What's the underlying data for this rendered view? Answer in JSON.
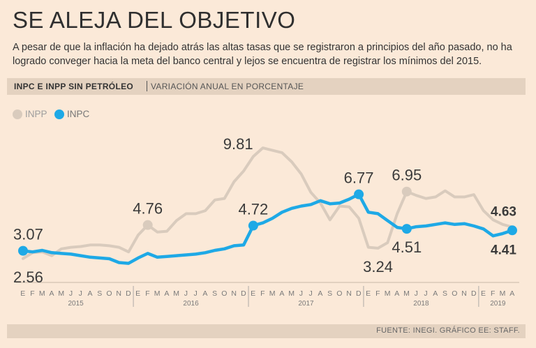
{
  "title": "SE ALEJA DEL OBJETIVO",
  "subtitle": "A pesar de que la inflación ha dejado atrás las altas tasas que se registraron a principios del año pasado, no ha logrado conveger hacia la meta del banco central y lejos se encuentra de registrar los mínimos del 2015.",
  "chart_header": {
    "title": "INPC E INPP SIN PETRÓLEO",
    "subtitle": "VARIACIÓN ANUAL EN PORCENTAJE"
  },
  "legend": [
    {
      "label": "INPP",
      "color": "#d9cbbd"
    },
    {
      "label": "INPC",
      "color": "#1ea9e6"
    }
  ],
  "source": "FUENTE: INEGI. GRÁFICO EE: STAFF.",
  "chart_data": {
    "type": "line",
    "x": [
      "2015-01",
      "2015-02",
      "2015-03",
      "2015-04",
      "2015-05",
      "2015-06",
      "2015-07",
      "2015-08",
      "2015-09",
      "2015-10",
      "2015-11",
      "2015-12",
      "2016-01",
      "2016-02",
      "2016-03",
      "2016-04",
      "2016-05",
      "2016-06",
      "2016-07",
      "2016-08",
      "2016-09",
      "2016-10",
      "2016-11",
      "2016-12",
      "2017-01",
      "2017-02",
      "2017-03",
      "2017-04",
      "2017-05",
      "2017-06",
      "2017-07",
      "2017-08",
      "2017-09",
      "2017-10",
      "2017-11",
      "2017-12",
      "2018-01",
      "2018-02",
      "2018-03",
      "2018-04",
      "2018-05",
      "2018-06",
      "2018-07",
      "2018-08",
      "2018-09",
      "2018-10",
      "2018-11",
      "2018-12",
      "2019-01",
      "2019-02",
      "2019-03",
      "2019-04"
    ],
    "month_labels": [
      "E",
      "F",
      "M",
      "A",
      "M",
      "J",
      "J",
      "A",
      "S",
      "O",
      "N",
      "D",
      "E",
      "F",
      "M",
      "A",
      "M",
      "J",
      "J",
      "A",
      "S",
      "O",
      "N",
      "D",
      "E",
      "F",
      "M",
      "A",
      "M",
      "J",
      "J",
      "A",
      "S",
      "O",
      "N",
      "D",
      "E",
      "F",
      "M",
      "A",
      "M",
      "J",
      "J",
      "A",
      "S",
      "O",
      "N",
      "D",
      "E",
      "F",
      "M",
      "A"
    ],
    "year_labels": [
      {
        "label": "2015",
        "start": 0,
        "end": 11
      },
      {
        "label": "2016",
        "start": 12,
        "end": 23
      },
      {
        "label": "2017",
        "start": 24,
        "end": 35
      },
      {
        "label": "2018",
        "start": 36,
        "end": 47
      },
      {
        "label": "2019",
        "start": 48,
        "end": 51
      }
    ],
    "series": [
      {
        "name": "INPP",
        "color": "#d9cbbd",
        "values": [
          2.56,
          2.95,
          3.0,
          2.75,
          3.2,
          3.3,
          3.35,
          3.45,
          3.45,
          3.4,
          3.3,
          3.0,
          4.1,
          4.76,
          4.3,
          4.35,
          5.05,
          5.5,
          5.5,
          5.7,
          6.4,
          6.5,
          7.6,
          8.3,
          9.25,
          9.81,
          9.65,
          9.5,
          8.9,
          8.1,
          6.9,
          6.2,
          5.1,
          6.0,
          5.95,
          5.2,
          3.3,
          3.24,
          3.6,
          5.5,
          6.95,
          6.7,
          6.5,
          6.6,
          7.0,
          6.6,
          6.6,
          6.75,
          5.7,
          5.1,
          4.8,
          4.63
        ]
      },
      {
        "name": "INPC",
        "color": "#1ea9e6",
        "values": [
          3.07,
          3.0,
          3.1,
          2.95,
          2.9,
          2.85,
          2.75,
          2.65,
          2.6,
          2.55,
          2.3,
          2.25,
          2.6,
          2.9,
          2.65,
          2.7,
          2.75,
          2.8,
          2.85,
          2.95,
          3.1,
          3.2,
          3.4,
          3.45,
          4.72,
          4.9,
          5.2,
          5.6,
          5.85,
          6.0,
          6.1,
          6.35,
          6.15,
          6.2,
          6.45,
          6.77,
          5.6,
          5.5,
          5.05,
          4.6,
          4.51,
          4.65,
          4.7,
          4.8,
          4.9,
          4.8,
          4.85,
          4.7,
          4.5,
          4.05,
          4.2,
          4.41
        ]
      }
    ],
    "annotations": [
      {
        "series": "INPC",
        "index": 0,
        "label": "3.07",
        "bold": false,
        "pos": "above"
      },
      {
        "series": "INPP",
        "index": 0,
        "label": "2.56",
        "bold": false,
        "pos": "below"
      },
      {
        "series": "INPP",
        "index": 13,
        "label": "4.76",
        "bold": false,
        "pos": "above"
      },
      {
        "series": "INPP",
        "index": 25,
        "label": "9.81",
        "bold": false,
        "pos": "left"
      },
      {
        "series": "INPC",
        "index": 24,
        "label": "4.72",
        "bold": false,
        "pos": "above"
      },
      {
        "series": "INPC",
        "index": 35,
        "label": "6.77",
        "bold": false,
        "pos": "above"
      },
      {
        "series": "INPP",
        "index": 37,
        "label": "3.24",
        "bold": false,
        "pos": "below"
      },
      {
        "series": "INPC",
        "index": 40,
        "label": "4.51",
        "bold": false,
        "pos": "below"
      },
      {
        "series": "INPP",
        "index": 40,
        "label": "6.95",
        "bold": false,
        "pos": "above"
      },
      {
        "series": "INPP",
        "index": 51,
        "label": "4.63",
        "bold": true,
        "pos": "above"
      },
      {
        "series": "INPC",
        "index": 51,
        "label": "4.41",
        "bold": true,
        "pos": "below"
      }
    ],
    "markers": [
      {
        "series": "INPC",
        "index": 0
      },
      {
        "series": "INPP",
        "index": 13
      },
      {
        "series": "INPC",
        "index": 24
      },
      {
        "series": "INPC",
        "index": 35
      },
      {
        "series": "INPC",
        "index": 40
      },
      {
        "series": "INPP",
        "index": 40
      },
      {
        "series": "INPC",
        "index": 51
      }
    ],
    "ylim": [
      1.5,
      10.5
    ],
    "grid": false,
    "legend_position": "top-left"
  }
}
